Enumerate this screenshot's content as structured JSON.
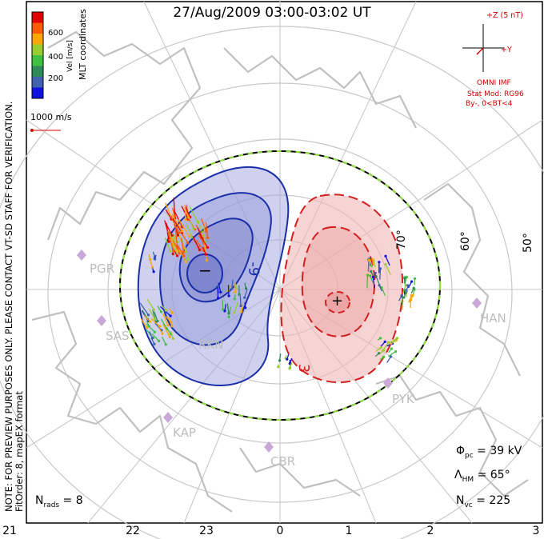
{
  "title": "27/Aug/2009 03:00-03:02 UT",
  "colorbar": {
    "label": "Vel [m/s]",
    "ticks": [
      "600",
      "400",
      "200"
    ],
    "colors": [
      "#e00000",
      "#ff5a00",
      "#ffa500",
      "#9acd32",
      "#40c040",
      "#2e8b57",
      "#4060b0",
      "#1010e0"
    ]
  },
  "coordinates_label": "MLT coordinates",
  "scale_label": "1000 m/s",
  "watermark": "NOTE: FOR PREVIEW PURPOSES ONLY. PLEASE CONTACT VT-SD STAFF FOR VERIFICATION.",
  "fit_order": "FitOrder: 8, mapEX format",
  "imf": {
    "z_label": "+Z (5 nT)",
    "y_label": "+Y",
    "source": "OMNI IMF",
    "model": "Stat Mod: RG96",
    "condition": "By-, 0<BT<4"
  },
  "stations": [
    "PGR",
    "SAS",
    "RKN",
    "KAP",
    "CBR",
    "PYK",
    "HAN"
  ],
  "lat_labels": [
    "70°",
    "60°",
    "50°"
  ],
  "contours": {
    "neg_label": "-9",
    "pos_label": "3",
    "neg_center": "−",
    "pos_center": "+"
  },
  "stats": {
    "phi_pc": "39 kV",
    "lambda_hm": "65°",
    "n_vc": "225",
    "n_rads": "8"
  },
  "mlt_ticks": [
    "21",
    "22",
    "23",
    "0",
    "1",
    "2",
    "3"
  ],
  "colors": {
    "negative": "#1a2fa8",
    "positive": "#d22020",
    "imf": "#d00000",
    "land": "#c8c8c8"
  }
}
